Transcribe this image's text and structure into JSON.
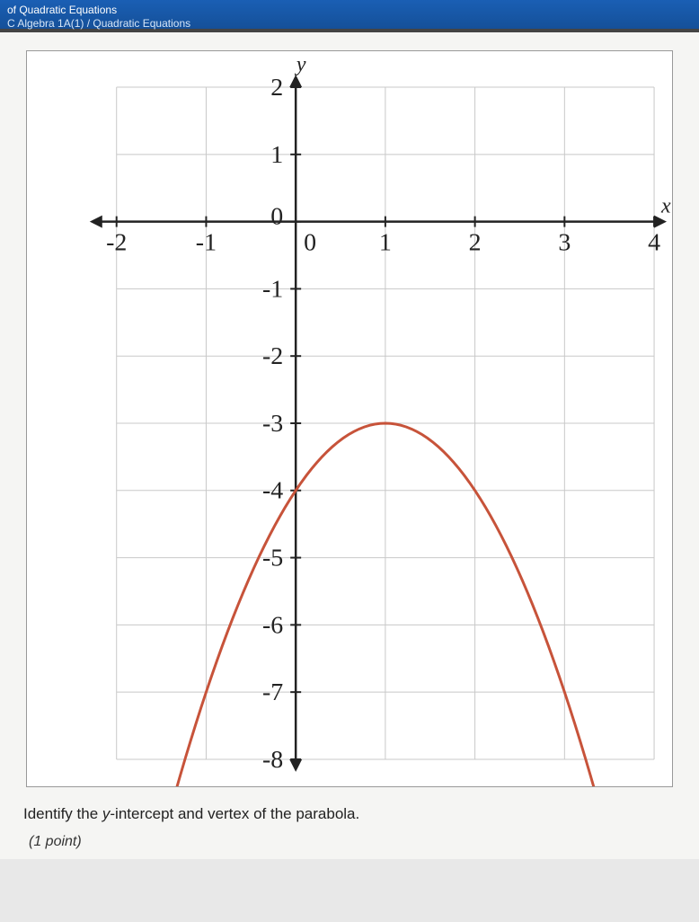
{
  "header": {
    "top_crumb": "of Quadratic Equations",
    "sub_crumb": "C Algebra 1A(1) / Quadratic Equations"
  },
  "chart": {
    "type": "line",
    "x_axis_label": "x",
    "y_axis_label": "y",
    "xlim": [
      -2,
      4
    ],
    "ylim": [
      -8,
      2
    ],
    "x_ticks": [
      -2,
      -1,
      0,
      1,
      2,
      3,
      4
    ],
    "x_tick_labels": [
      "-2",
      "-1",
      "0",
      "1",
      "2",
      "3",
      "4"
    ],
    "y_ticks": [
      -8,
      -7,
      -6,
      -5,
      -4,
      -3,
      -2,
      -1,
      0,
      1,
      2
    ],
    "y_tick_labels": [
      "-8",
      "-7",
      "-6",
      "-5",
      "-4",
      "-3",
      "-2",
      "-1",
      "0",
      "1",
      "2"
    ],
    "y_zero_label": "0",
    "grid_visible": true,
    "grid_color": "#c8c8c8",
    "axis_color": "#222222",
    "curve_color": "#c7533a",
    "curve_width": 3,
    "background_color": "#ffffff",
    "tick_fontsize": 28,
    "axis_label_fontsize": 24,
    "parabola": {
      "vertex": [
        1,
        -3
      ],
      "a": -1,
      "points": [
        [
          -1.3,
          -8.3
        ],
        [
          -1,
          -7
        ],
        [
          -0.5,
          -5.25
        ],
        [
          0,
          -4
        ],
        [
          0.5,
          -3.25
        ],
        [
          1,
          -3
        ],
        [
          1.5,
          -3.25
        ],
        [
          2,
          -4
        ],
        [
          2.5,
          -5.25
        ],
        [
          3,
          -7
        ],
        [
          3.3,
          -8.3
        ]
      ]
    }
  },
  "question": {
    "prefix": "Identify the ",
    "italic_part": "y",
    "suffix": "-intercept and vertex of the parabola.",
    "points_label": "(1 point)"
  }
}
